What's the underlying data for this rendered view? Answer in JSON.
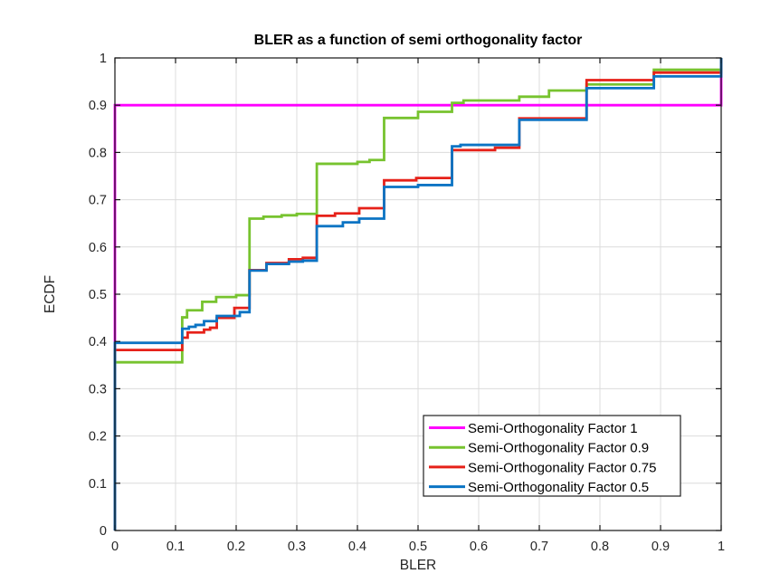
{
  "figure": {
    "background": "#FFFFFF",
    "border_color": "#151515",
    "grid_color": "#DCDCDC",
    "tick_label_color": "#262626",
    "title_color": "#000000"
  },
  "chart_data": {
    "type": "line",
    "subtype": "ecdf-step",
    "title": "BLER as a function of semi orthogonality factor",
    "xlabel": "BLER",
    "ylabel": "ECDF",
    "xlim": [
      0,
      1
    ],
    "ylim": [
      0,
      1
    ],
    "grid": true,
    "legend_position": "inside lower right",
    "xticks": [
      0,
      0.1,
      0.2,
      0.3,
      0.4,
      0.5,
      0.6,
      0.7,
      0.8,
      0.9,
      1
    ],
    "yticks": [
      0,
      0.1,
      0.2,
      0.3,
      0.4,
      0.5,
      0.6,
      0.7,
      0.8,
      0.9,
      1
    ],
    "xtick_labels": [
      "0",
      "0.1",
      "0.2",
      "0.3",
      "0.4",
      "0.5",
      "0.6",
      "0.7",
      "0.8",
      "0.9",
      "1"
    ],
    "ytick_labels": [
      "0",
      "0.1",
      "0.2",
      "0.3",
      "0.4",
      "0.5",
      "0.6",
      "0.7",
      "0.8",
      "0.9",
      "1"
    ],
    "series": [
      {
        "name": "Semi-Orthogonality Factor 1",
        "color": "#FF00FF",
        "steps": [
          [
            0,
            0.9
          ],
          [
            1,
            1
          ]
        ]
      },
      {
        "name": "Semi-Orthogonality Factor 0.9",
        "color": "#77C32F",
        "steps": [
          [
            0,
            0.356
          ],
          [
            0.111,
            0.451
          ],
          [
            0.119,
            0.466
          ],
          [
            0.144,
            0.484
          ],
          [
            0.167,
            0.494
          ],
          [
            0.2,
            0.498
          ],
          [
            0.222,
            0.66
          ],
          [
            0.245,
            0.664
          ],
          [
            0.275,
            0.667
          ],
          [
            0.3,
            0.67
          ],
          [
            0.333,
            0.776
          ],
          [
            0.4,
            0.78
          ],
          [
            0.42,
            0.784
          ],
          [
            0.444,
            0.873
          ],
          [
            0.5,
            0.886
          ],
          [
            0.556,
            0.905
          ],
          [
            0.575,
            0.91
          ],
          [
            0.667,
            0.918
          ],
          [
            0.716,
            0.931
          ],
          [
            0.778,
            0.944
          ],
          [
            0.889,
            0.975
          ],
          [
            1,
            1
          ]
        ]
      },
      {
        "name": "Semi-Orthogonality Factor 0.75",
        "color": "#E62119",
        "steps": [
          [
            0,
            0.382
          ],
          [
            0.111,
            0.408
          ],
          [
            0.12,
            0.419
          ],
          [
            0.147,
            0.425
          ],
          [
            0.157,
            0.429
          ],
          [
            0.168,
            0.45
          ],
          [
            0.197,
            0.471
          ],
          [
            0.222,
            0.551
          ],
          [
            0.25,
            0.566
          ],
          [
            0.287,
            0.574
          ],
          [
            0.31,
            0.577
          ],
          [
            0.333,
            0.666
          ],
          [
            0.363,
            0.671
          ],
          [
            0.403,
            0.682
          ],
          [
            0.444,
            0.741
          ],
          [
            0.497,
            0.746
          ],
          [
            0.556,
            0.805
          ],
          [
            0.627,
            0.81
          ],
          [
            0.667,
            0.872
          ],
          [
            0.778,
            0.953
          ],
          [
            0.889,
            0.969
          ],
          [
            1,
            1
          ]
        ]
      },
      {
        "name": "Semi-Orthogonality Factor 0.5",
        "color": "#0B74C4",
        "steps": [
          [
            0,
            0.397
          ],
          [
            0.111,
            0.427
          ],
          [
            0.122,
            0.431
          ],
          [
            0.133,
            0.435
          ],
          [
            0.147,
            0.443
          ],
          [
            0.168,
            0.454
          ],
          [
            0.206,
            0.462
          ],
          [
            0.222,
            0.55
          ],
          [
            0.25,
            0.564
          ],
          [
            0.287,
            0.569
          ],
          [
            0.31,
            0.571
          ],
          [
            0.333,
            0.644
          ],
          [
            0.376,
            0.652
          ],
          [
            0.403,
            0.66
          ],
          [
            0.444,
            0.727
          ],
          [
            0.5,
            0.731
          ],
          [
            0.556,
            0.813
          ],
          [
            0.57,
            0.816
          ],
          [
            0.667,
            0.869
          ],
          [
            0.778,
            0.936
          ],
          [
            0.889,
            0.961
          ],
          [
            1,
            1
          ]
        ]
      }
    ]
  }
}
